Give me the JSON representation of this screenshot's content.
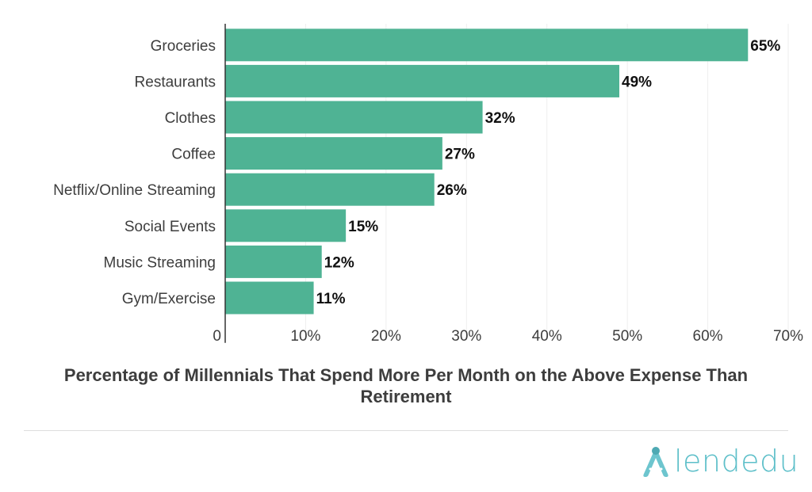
{
  "chart_data": {
    "type": "bar",
    "orientation": "horizontal",
    "categories": [
      "Groceries",
      "Restaurants",
      "Clothes",
      "Coffee",
      "Netflix/Online Streaming",
      "Social Events",
      "Music Streaming",
      "Gym/Exercise"
    ],
    "values": [
      65,
      49,
      32,
      27,
      26,
      15,
      12,
      11
    ],
    "value_labels": [
      "65%",
      "49%",
      "32%",
      "27%",
      "26%",
      "15%",
      "12%",
      "11%"
    ],
    "xlabel": "Percentage of Millennials That Spend More Per Month on the Above Expense Than Retirement",
    "xlim": [
      0,
      70
    ],
    "xticks": [
      0,
      10,
      20,
      30,
      40,
      50,
      60,
      70
    ],
    "xtick_labels": [
      "0",
      "10%",
      "20%",
      "30%",
      "40%",
      "50%",
      "60%",
      "70%"
    ],
    "grid": true,
    "colors": {
      "bar": "#4fb394",
      "grid": "#eeeeee",
      "axis": "#333333"
    }
  },
  "brand": {
    "logo_text": "lendedu",
    "logo_color": "#5dbfc9",
    "logo_icon": "lendedu-a-icon"
  }
}
